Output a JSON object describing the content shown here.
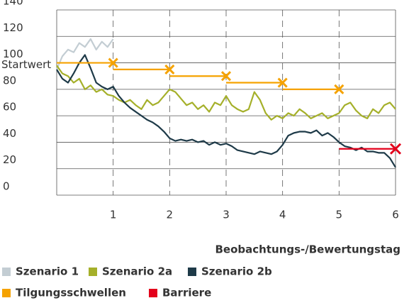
{
  "chart_data": {
    "type": "line",
    "annotation": "Startwert",
    "annotation_value": 100,
    "xlabel": "Beobachtungs-/Bewertungstag",
    "x": [
      0,
      0.1,
      0.2,
      0.3,
      0.4,
      0.5,
      0.6,
      0.7,
      0.8,
      0.9,
      1,
      1.1,
      1.2,
      1.3,
      1.4,
      1.5,
      1.6,
      1.7,
      1.8,
      1.9,
      2,
      2.1,
      2.2,
      2.3,
      2.4,
      2.5,
      2.6,
      2.7,
      2.8,
      2.9,
      3,
      3.1,
      3.2,
      3.3,
      3.4,
      3.5,
      3.6,
      3.7,
      3.8,
      3.9,
      4,
      4.1,
      4.2,
      4.3,
      4.4,
      4.5,
      4.6,
      4.7,
      4.8,
      4.9,
      5,
      5.1,
      5.2,
      5.3,
      5.4,
      5.5,
      5.6,
      5.7,
      5.8,
      5.9,
      6
    ],
    "series": [
      {
        "name": "Szenario 1",
        "color": "#c3cdd3",
        "values": [
          95,
          105,
          110,
          108,
          115,
          112,
          118,
          110,
          116,
          112,
          118,
          null,
          null,
          null,
          null,
          null,
          null,
          null,
          null,
          null,
          null,
          null,
          null,
          null,
          null,
          null,
          null,
          null,
          null,
          null,
          null,
          null,
          null,
          null,
          null,
          null,
          null,
          null,
          null,
          null,
          null,
          null,
          null,
          null,
          null,
          null,
          null,
          null,
          null,
          null,
          null,
          null,
          null,
          null,
          null,
          null,
          null,
          null,
          null,
          null,
          null
        ]
      },
      {
        "name": "Szenario 2a",
        "color": "#a5b02a",
        "values": [
          98,
          92,
          90,
          85,
          88,
          80,
          83,
          78,
          80,
          76,
          75,
          72,
          70,
          72,
          68,
          65,
          72,
          68,
          70,
          75,
          80,
          78,
          73,
          68,
          70,
          65,
          68,
          63,
          70,
          68,
          75,
          68,
          65,
          63,
          65,
          78,
          72,
          62,
          57,
          60,
          58,
          62,
          60,
          65,
          62,
          58,
          60,
          62,
          58,
          60,
          62,
          68,
          70,
          64,
          60,
          58,
          65,
          62,
          68,
          70,
          65
        ]
      },
      {
        "name": "Szenario 2b",
        "color": "#1e3a48",
        "values": [
          95,
          88,
          85,
          92,
          100,
          106,
          96,
          85,
          82,
          80,
          82,
          75,
          70,
          66,
          63,
          60,
          57,
          55,
          52,
          48,
          43,
          41,
          42,
          41,
          42,
          40,
          41,
          38,
          40,
          38,
          39,
          37,
          34,
          33,
          32,
          31,
          33,
          32,
          31,
          33,
          38,
          45,
          47,
          48,
          48,
          47,
          49,
          45,
          47,
          44,
          40,
          37,
          36,
          34,
          36,
          33,
          33,
          32,
          32,
          28,
          21
        ]
      }
    ],
    "thresholds": {
      "name": "Tilgungsschwellen",
      "color": "#f5a200",
      "x": [
        1,
        2,
        3,
        4,
        5
      ],
      "values": [
        100,
        95,
        90,
        85,
        80
      ]
    },
    "barrier": {
      "name": "Barriere",
      "color": "#e3001b",
      "x_start": 5,
      "x": 6,
      "value": 35
    },
    "xlim": [
      0,
      6
    ],
    "xticks": [
      1,
      2,
      3,
      4,
      5,
      6
    ],
    "ylim": [
      0,
      140
    ],
    "yticks": [
      0,
      20,
      40,
      60,
      80,
      100,
      120,
      140
    ],
    "grid": true
  }
}
